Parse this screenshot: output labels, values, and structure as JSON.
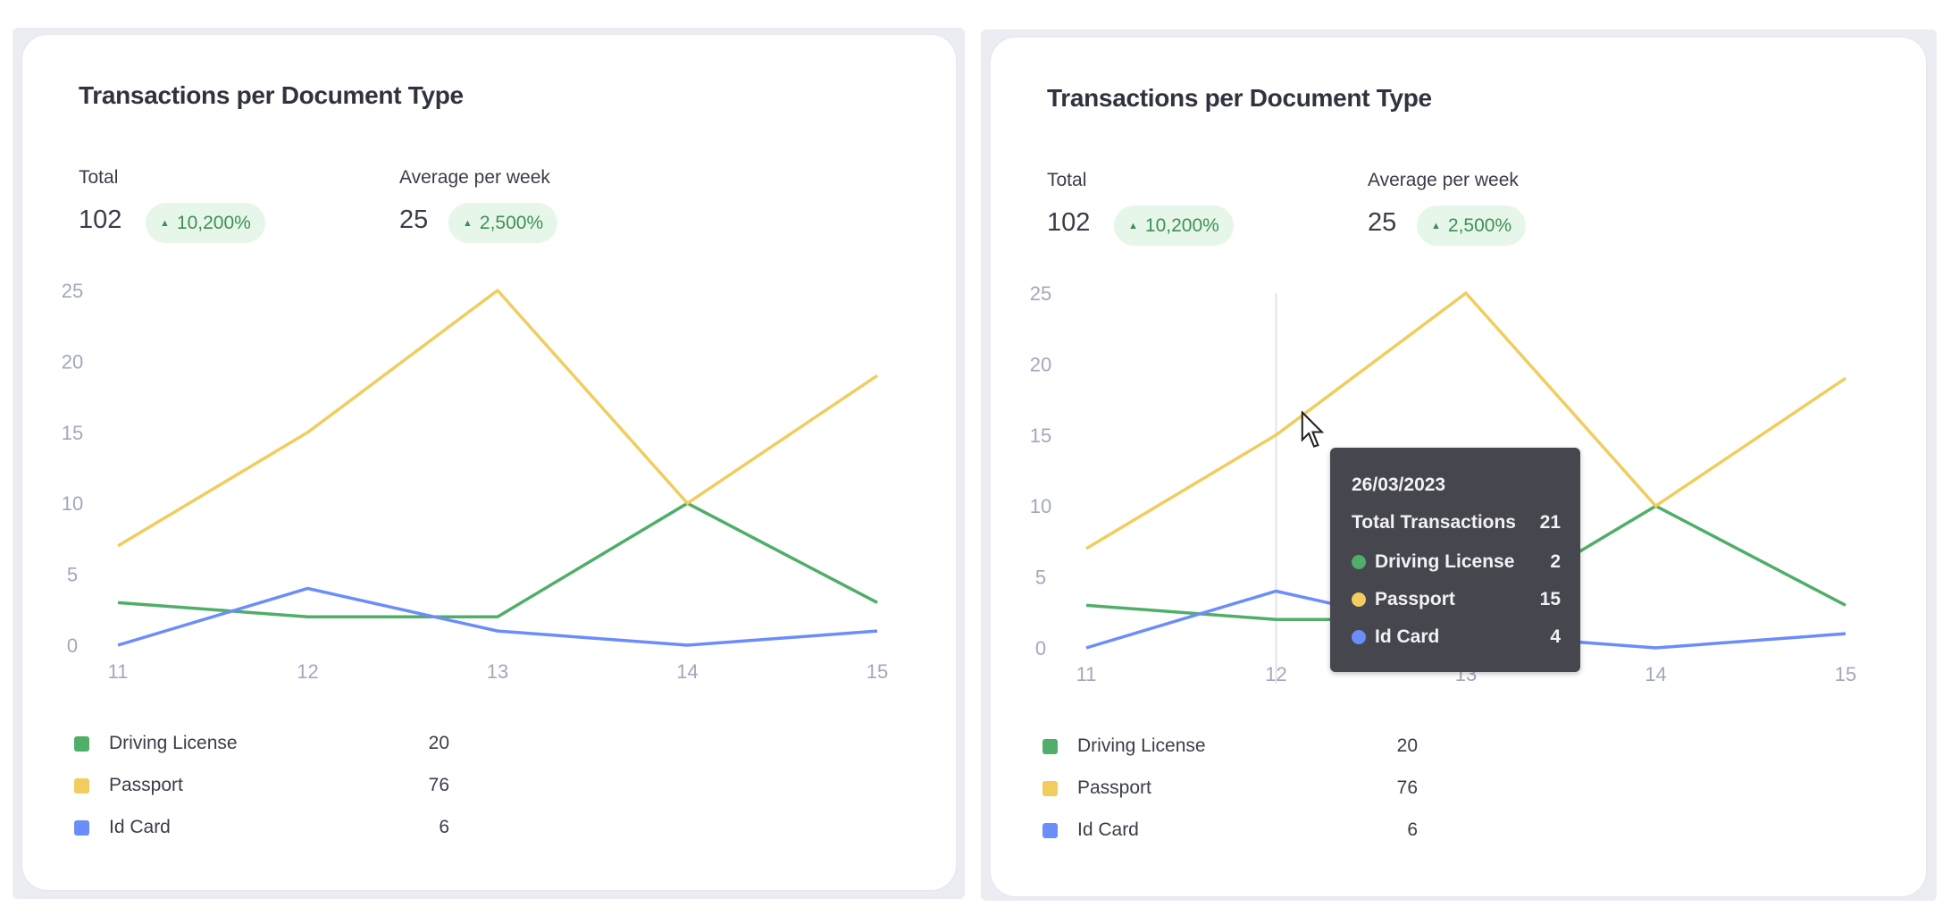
{
  "colors": {
    "driving_license": "#4fae67",
    "passport": "#f0cd5e",
    "id_card": "#6b8dfa",
    "badge_bg": "#e6f7ea",
    "badge_text": "#3f8f55"
  },
  "cards": [
    {
      "title": "Transactions per Document Type",
      "total_label": "Total",
      "total_value": "102",
      "total_change": "10,200%",
      "avg_label": "Average per week",
      "avg_value": "25",
      "avg_change": "2,500%",
      "change_icon": "triangle-up-icon",
      "legend": [
        {
          "label": "Driving License",
          "value": "20"
        },
        {
          "label": "Passport",
          "value": "76"
        },
        {
          "label": "Id Card",
          "value": "6"
        }
      ]
    },
    {
      "title": "Transactions per Document Type",
      "total_label": "Total",
      "total_value": "102",
      "total_change": "10,200%",
      "avg_label": "Average per week",
      "avg_value": "25",
      "avg_change": "2,500%",
      "change_icon": "triangle-up-icon",
      "legend": [
        {
          "label": "Driving License",
          "value": "20"
        },
        {
          "label": "Passport",
          "value": "76"
        },
        {
          "label": "Id Card",
          "value": "6"
        }
      ],
      "tooltip": {
        "date": "26/03/2023",
        "total_label": "Total Transactions",
        "total_value": "21",
        "rows": [
          {
            "label": "Driving License",
            "value": "2"
          },
          {
            "label": "Passport",
            "value": "15"
          },
          {
            "label": "Id Card",
            "value": "4"
          }
        ]
      },
      "hover_category": "12"
    }
  ],
  "chart_data": [
    {
      "type": "line",
      "categories": [
        "11",
        "12",
        "13",
        "14",
        "15"
      ],
      "yticks": [
        "0",
        "5",
        "10",
        "15",
        "20",
        "25"
      ],
      "ylim": [
        0,
        25
      ],
      "grid": false,
      "legend": "bottom-left",
      "series": [
        {
          "name": "Driving License",
          "values": [
            3,
            2,
            2,
            10,
            3
          ],
          "color": "#4fae67"
        },
        {
          "name": "Passport",
          "values": [
            7,
            15,
            25,
            10,
            19
          ],
          "color": "#f0cd5e"
        },
        {
          "name": "Id Card",
          "values": [
            0,
            4,
            1,
            0,
            1
          ],
          "color": "#6b8dfa"
        }
      ]
    },
    {
      "type": "line",
      "categories": [
        "11",
        "12",
        "13",
        "14",
        "15"
      ],
      "yticks": [
        "0",
        "5",
        "10",
        "15",
        "20",
        "25"
      ],
      "ylim": [
        0,
        25
      ],
      "grid": false,
      "legend": "bottom-left",
      "series": [
        {
          "name": "Driving License",
          "values": [
            3,
            2,
            2,
            10,
            3
          ],
          "color": "#4fae67"
        },
        {
          "name": "Passport",
          "values": [
            7,
            15,
            25,
            10,
            19
          ],
          "color": "#f0cd5e"
        },
        {
          "name": "Id Card",
          "values": [
            0,
            4,
            1,
            0,
            1
          ],
          "color": "#6b8dfa"
        }
      ]
    }
  ]
}
